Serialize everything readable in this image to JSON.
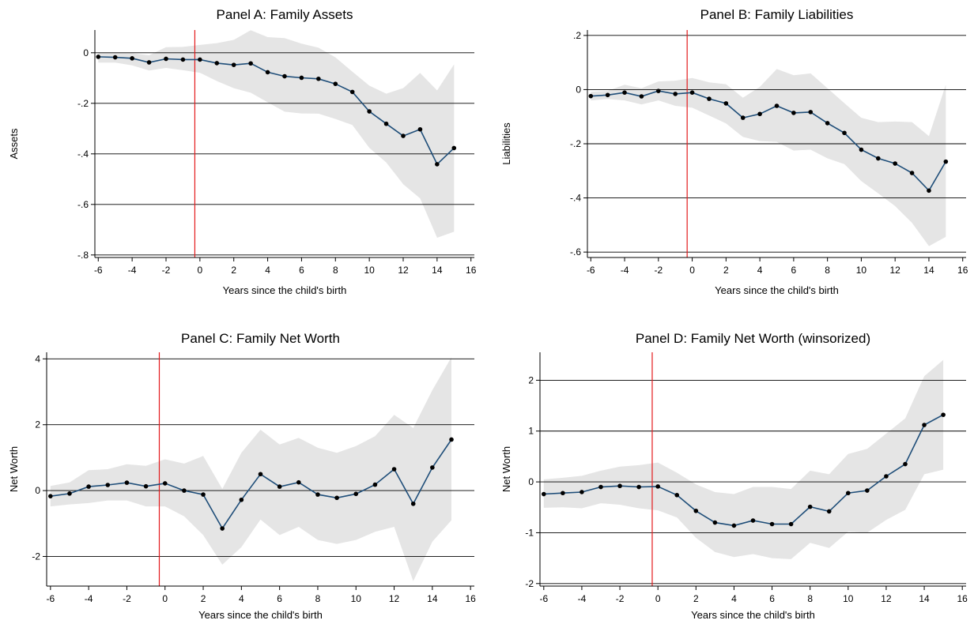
{
  "chart_data": [
    {
      "type": "line",
      "title": "Panel A: Family Assets",
      "xlabel": "Years since the child's birth",
      "ylabel": "Assets",
      "xlim": [
        -6.2,
        16.2
      ],
      "ylim": [
        -0.81,
        0.09
      ],
      "xticks": [
        -6,
        -4,
        -2,
        0,
        2,
        4,
        6,
        8,
        10,
        12,
        14,
        16
      ],
      "xtick_labels": [
        "-6",
        "-4",
        "-2",
        "0",
        "2",
        "4",
        "6",
        "8",
        "10",
        "12",
        "14",
        "16"
      ],
      "yticks": [
        0,
        -0.2,
        -0.4,
        -0.6,
        -0.8
      ],
      "ytick_labels": [
        "0",
        "-.2",
        "-.4",
        "-.6",
        "-.8"
      ],
      "grid": true,
      "event_line_x": -0.3,
      "x": [
        -6,
        -5,
        -4,
        -3,
        -2,
        -1,
        0,
        1,
        2,
        3,
        4,
        5,
        6,
        7,
        8,
        9,
        10,
        11,
        12,
        13,
        14,
        15
      ],
      "values": [
        -0.016,
        -0.018,
        -0.022,
        -0.038,
        -0.024,
        -0.027,
        -0.027,
        -0.041,
        -0.048,
        -0.042,
        -0.077,
        -0.093,
        -0.099,
        -0.103,
        -0.123,
        -0.155,
        -0.232,
        -0.281,
        -0.329,
        -0.303,
        -0.441,
        -0.377
      ],
      "ci_upper": [
        0.0,
        0.0,
        -0.002,
        -0.01,
        0.022,
        0.023,
        0.031,
        0.038,
        0.051,
        0.089,
        0.062,
        0.058,
        0.036,
        0.02,
        -0.018,
        -0.075,
        -0.13,
        -0.162,
        -0.14,
        -0.08,
        -0.149,
        -0.046
      ],
      "ci_lower": [
        -0.039,
        -0.039,
        -0.05,
        -0.07,
        -0.06,
        -0.069,
        -0.079,
        -0.112,
        -0.14,
        -0.158,
        -0.196,
        -0.233,
        -0.24,
        -0.241,
        -0.262,
        -0.286,
        -0.376,
        -0.434,
        -0.52,
        -0.576,
        -0.732,
        -0.708
      ]
    },
    {
      "type": "line",
      "title": "Panel B: Family Liabilities",
      "xlabel": "Years since the child's birth",
      "ylabel": "Liabilities",
      "xlim": [
        -6.2,
        16.2
      ],
      "ylim": [
        -0.62,
        0.22
      ],
      "xticks": [
        -6,
        -4,
        -2,
        0,
        2,
        4,
        6,
        8,
        10,
        12,
        14,
        16
      ],
      "xtick_labels": [
        "-6",
        "-4",
        "-2",
        "0",
        "2",
        "4",
        "6",
        "8",
        "10",
        "12",
        "14",
        "16"
      ],
      "yticks": [
        0.2,
        0,
        -0.2,
        -0.4,
        -0.6
      ],
      "ytick_labels": [
        ".2",
        "0",
        "-.2",
        "-.4",
        "-.6"
      ],
      "grid": true,
      "event_line_x": -0.3,
      "x": [
        -6,
        -5,
        -4,
        -3,
        -2,
        -1,
        0,
        1,
        2,
        3,
        4,
        5,
        6,
        7,
        8,
        9,
        10,
        11,
        12,
        13,
        14,
        15
      ],
      "values": [
        -0.024,
        -0.02,
        -0.011,
        -0.025,
        -0.005,
        -0.016,
        -0.011,
        -0.034,
        -0.051,
        -0.104,
        -0.09,
        -0.06,
        -0.086,
        -0.083,
        -0.124,
        -0.16,
        -0.222,
        -0.254,
        -0.273,
        -0.308,
        -0.373,
        -0.266
      ],
      "ci_upper": [
        -0.008,
        -0.005,
        0.018,
        0.005,
        0.03,
        0.033,
        0.043,
        0.027,
        0.02,
        -0.03,
        0.01,
        0.076,
        0.053,
        0.06,
        0.005,
        -0.05,
        -0.104,
        -0.12,
        -0.118,
        -0.12,
        -0.172,
        0.018
      ],
      "ci_lower": [
        -0.04,
        -0.035,
        -0.04,
        -0.055,
        -0.04,
        -0.06,
        -0.067,
        -0.096,
        -0.125,
        -0.175,
        -0.19,
        -0.193,
        -0.225,
        -0.222,
        -0.254,
        -0.275,
        -0.338,
        -0.383,
        -0.43,
        -0.492,
        -0.578,
        -0.544
      ]
    },
    {
      "type": "line",
      "title": "Panel C: Family Net Worth",
      "xlabel": "Years since the child's birth",
      "ylabel": "Net Worth",
      "xlim": [
        -6.2,
        16.2
      ],
      "ylim": [
        -2.9,
        4.2
      ],
      "xticks": [
        -6,
        -4,
        -2,
        0,
        2,
        4,
        6,
        8,
        10,
        12,
        14,
        16
      ],
      "xtick_labels": [
        "-6",
        "-4",
        "-2",
        "0",
        "2",
        "4",
        "6",
        "8",
        "10",
        "12",
        "14",
        "16"
      ],
      "yticks": [
        4,
        2,
        0,
        -2
      ],
      "ytick_labels": [
        "4",
        "2",
        "0",
        "-2"
      ],
      "grid": true,
      "event_line_x": -0.3,
      "x": [
        -6,
        -5,
        -4,
        -3,
        -2,
        -1,
        0,
        1,
        2,
        3,
        4,
        5,
        6,
        7,
        8,
        9,
        10,
        11,
        12,
        13,
        14,
        15
      ],
      "values": [
        -0.17,
        -0.09,
        0.12,
        0.17,
        0.24,
        0.13,
        0.22,
        0.0,
        -0.12,
        -1.15,
        -0.28,
        0.5,
        0.12,
        0.25,
        -0.12,
        -0.22,
        -0.1,
        0.18,
        0.65,
        -0.4,
        0.7,
        1.55
      ],
      "ci_upper": [
        0.14,
        0.25,
        0.62,
        0.65,
        0.8,
        0.75,
        0.95,
        0.82,
        1.05,
        0.05,
        1.15,
        1.85,
        1.4,
        1.6,
        1.3,
        1.15,
        1.35,
        1.65,
        2.3,
        1.9,
        3.05,
        4.05
      ],
      "ci_lower": [
        -0.48,
        -0.42,
        -0.38,
        -0.3,
        -0.3,
        -0.48,
        -0.48,
        -0.78,
        -1.35,
        -2.25,
        -1.72,
        -0.88,
        -1.35,
        -1.1,
        -1.5,
        -1.62,
        -1.5,
        -1.25,
        -1.1,
        -2.75,
        -1.55,
        -0.9
      ]
    },
    {
      "type": "line",
      "title": "Panel D: Family Net Worth (winsorized)",
      "xlabel": "Years since the child's birth",
      "ylabel": "Net Worth",
      "xlim": [
        -6.2,
        16.2
      ],
      "ylim": [
        -2.05,
        2.55
      ],
      "xticks": [
        -6,
        -4,
        -2,
        0,
        2,
        4,
        6,
        8,
        10,
        12,
        14,
        16
      ],
      "xtick_labels": [
        "-6",
        "-4",
        "-2",
        "0",
        "2",
        "4",
        "6",
        "8",
        "10",
        "12",
        "14",
        "16"
      ],
      "yticks": [
        2,
        1,
        0,
        -1,
        -2
      ],
      "ytick_labels": [
        "2",
        "1",
        "0",
        "-1",
        "-2"
      ],
      "grid": true,
      "event_line_x": -0.3,
      "x": [
        -6,
        -5,
        -4,
        -3,
        -2,
        -1,
        0,
        1,
        2,
        3,
        4,
        5,
        6,
        7,
        8,
        9,
        10,
        11,
        12,
        13,
        14,
        15
      ],
      "values": [
        -0.24,
        -0.22,
        -0.2,
        -0.1,
        -0.08,
        -0.1,
        -0.09,
        -0.26,
        -0.57,
        -0.8,
        -0.86,
        -0.76,
        -0.83,
        -0.83,
        -0.49,
        -0.58,
        -0.22,
        -0.17,
        0.11,
        0.35,
        1.12,
        1.32
      ],
      "ci_upper": [
        0.05,
        0.08,
        0.12,
        0.22,
        0.3,
        0.33,
        0.38,
        0.18,
        -0.05,
        -0.2,
        -0.24,
        -0.1,
        -0.1,
        -0.14,
        0.22,
        0.15,
        0.55,
        0.65,
        0.95,
        1.25,
        2.08,
        2.4
      ],
      "ci_lower": [
        -0.51,
        -0.5,
        -0.52,
        -0.42,
        -0.45,
        -0.52,
        -0.56,
        -0.7,
        -1.1,
        -1.38,
        -1.48,
        -1.42,
        -1.5,
        -1.52,
        -1.2,
        -1.3,
        -0.98,
        -1.0,
        -0.75,
        -0.55,
        0.15,
        0.24
      ]
    }
  ]
}
